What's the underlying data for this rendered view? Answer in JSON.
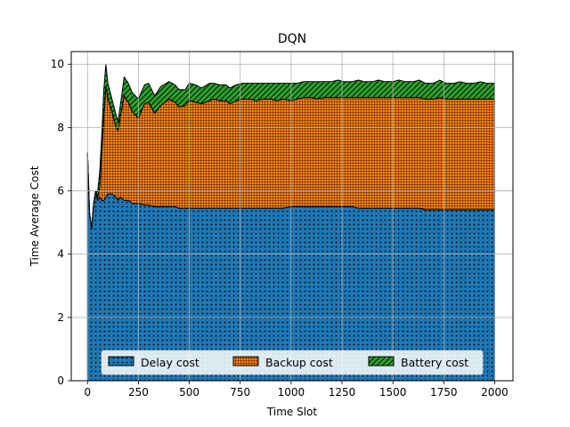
{
  "chart_data": {
    "type": "area",
    "stacked": true,
    "title": "DQN",
    "xlabel": "Time Slot",
    "ylabel": "Time Average Cost",
    "xlim": [
      -80,
      2090
    ],
    "ylim": [
      0,
      10.4
    ],
    "xticks": [
      0,
      250,
      500,
      750,
      1000,
      1250,
      1500,
      1750,
      2000
    ],
    "yticks": [
      0,
      2,
      4,
      6,
      8,
      10
    ],
    "grid": true,
    "legend_position": "bottom-center",
    "x": [
      0,
      10,
      20,
      30,
      40,
      50,
      60,
      70,
      80,
      90,
      100,
      120,
      140,
      150,
      160,
      180,
      200,
      220,
      250,
      280,
      300,
      330,
      360,
      400,
      430,
      450,
      480,
      500,
      530,
      560,
      600,
      620,
      650,
      680,
      700,
      730,
      760,
      800,
      830,
      860,
      900,
      930,
      960,
      1000,
      1030,
      1060,
      1100,
      1130,
      1160,
      1200,
      1230,
      1260,
      1300,
      1330,
      1360,
      1400,
      1430,
      1460,
      1500,
      1530,
      1560,
      1600,
      1630,
      1660,
      1700,
      1730,
      1760,
      1800,
      1830,
      1860,
      1900,
      1930,
      1960,
      2000
    ],
    "series": [
      {
        "name": "Delay cost",
        "color": "#1f77b4",
        "hatch": "dots",
        "values": [
          7.2,
          5.3,
          4.8,
          5.6,
          6.0,
          5.7,
          5.8,
          5.7,
          5.7,
          5.8,
          5.9,
          5.9,
          5.8,
          5.7,
          5.8,
          5.7,
          5.7,
          5.6,
          5.6,
          5.55,
          5.55,
          5.5,
          5.5,
          5.5,
          5.5,
          5.45,
          5.45,
          5.45,
          5.45,
          5.45,
          5.45,
          5.45,
          5.45,
          5.45,
          5.45,
          5.45,
          5.45,
          5.45,
          5.45,
          5.45,
          5.45,
          5.45,
          5.45,
          5.5,
          5.5,
          5.5,
          5.5,
          5.5,
          5.5,
          5.5,
          5.5,
          5.5,
          5.5,
          5.45,
          5.45,
          5.45,
          5.45,
          5.45,
          5.45,
          5.45,
          5.45,
          5.45,
          5.45,
          5.4,
          5.4,
          5.4,
          5.4,
          5.4,
          5.4,
          5.4,
          5.4,
          5.4,
          5.4,
          5.4
        ]
      },
      {
        "name": "Backup cost",
        "color": "#ff7f0e",
        "hatch": "grid",
        "values": [
          0.0,
          0.0,
          0.0,
          0.0,
          0.0,
          0.1,
          0.3,
          1.5,
          2.6,
          3.5,
          3.0,
          2.6,
          2.2,
          2.2,
          2.5,
          3.3,
          3.1,
          2.9,
          2.7,
          3.2,
          3.25,
          2.95,
          3.2,
          3.4,
          3.3,
          3.2,
          3.25,
          3.4,
          3.35,
          3.3,
          3.4,
          3.45,
          3.4,
          3.4,
          3.3,
          3.4,
          3.45,
          3.45,
          3.4,
          3.45,
          3.45,
          3.4,
          3.45,
          3.35,
          3.4,
          3.45,
          3.45,
          3.4,
          3.45,
          3.45,
          3.45,
          3.45,
          3.45,
          3.5,
          3.5,
          3.5,
          3.5,
          3.5,
          3.5,
          3.5,
          3.5,
          3.5,
          3.5,
          3.5,
          3.5,
          3.55,
          3.5,
          3.5,
          3.5,
          3.5,
          3.5,
          3.5,
          3.5,
          3.5
        ]
      },
      {
        "name": "Battery cost",
        "color": "#2ca02c",
        "hatch": "diagonal",
        "values": [
          0.0,
          0.0,
          0.0,
          0.0,
          0.0,
          0.2,
          0.5,
          0.6,
          0.9,
          0.7,
          0.5,
          0.4,
          0.4,
          0.3,
          0.35,
          0.6,
          0.6,
          0.6,
          0.6,
          0.6,
          0.6,
          0.55,
          0.6,
          0.55,
          0.55,
          0.55,
          0.5,
          0.55,
          0.55,
          0.5,
          0.55,
          0.5,
          0.5,
          0.5,
          0.5,
          0.5,
          0.5,
          0.5,
          0.55,
          0.5,
          0.5,
          0.55,
          0.5,
          0.55,
          0.5,
          0.5,
          0.5,
          0.55,
          0.5,
          0.5,
          0.55,
          0.5,
          0.5,
          0.55,
          0.5,
          0.5,
          0.55,
          0.5,
          0.5,
          0.55,
          0.5,
          0.5,
          0.55,
          0.5,
          0.5,
          0.55,
          0.5,
          0.5,
          0.55,
          0.5,
          0.5,
          0.55,
          0.5,
          0.5
        ]
      }
    ]
  }
}
